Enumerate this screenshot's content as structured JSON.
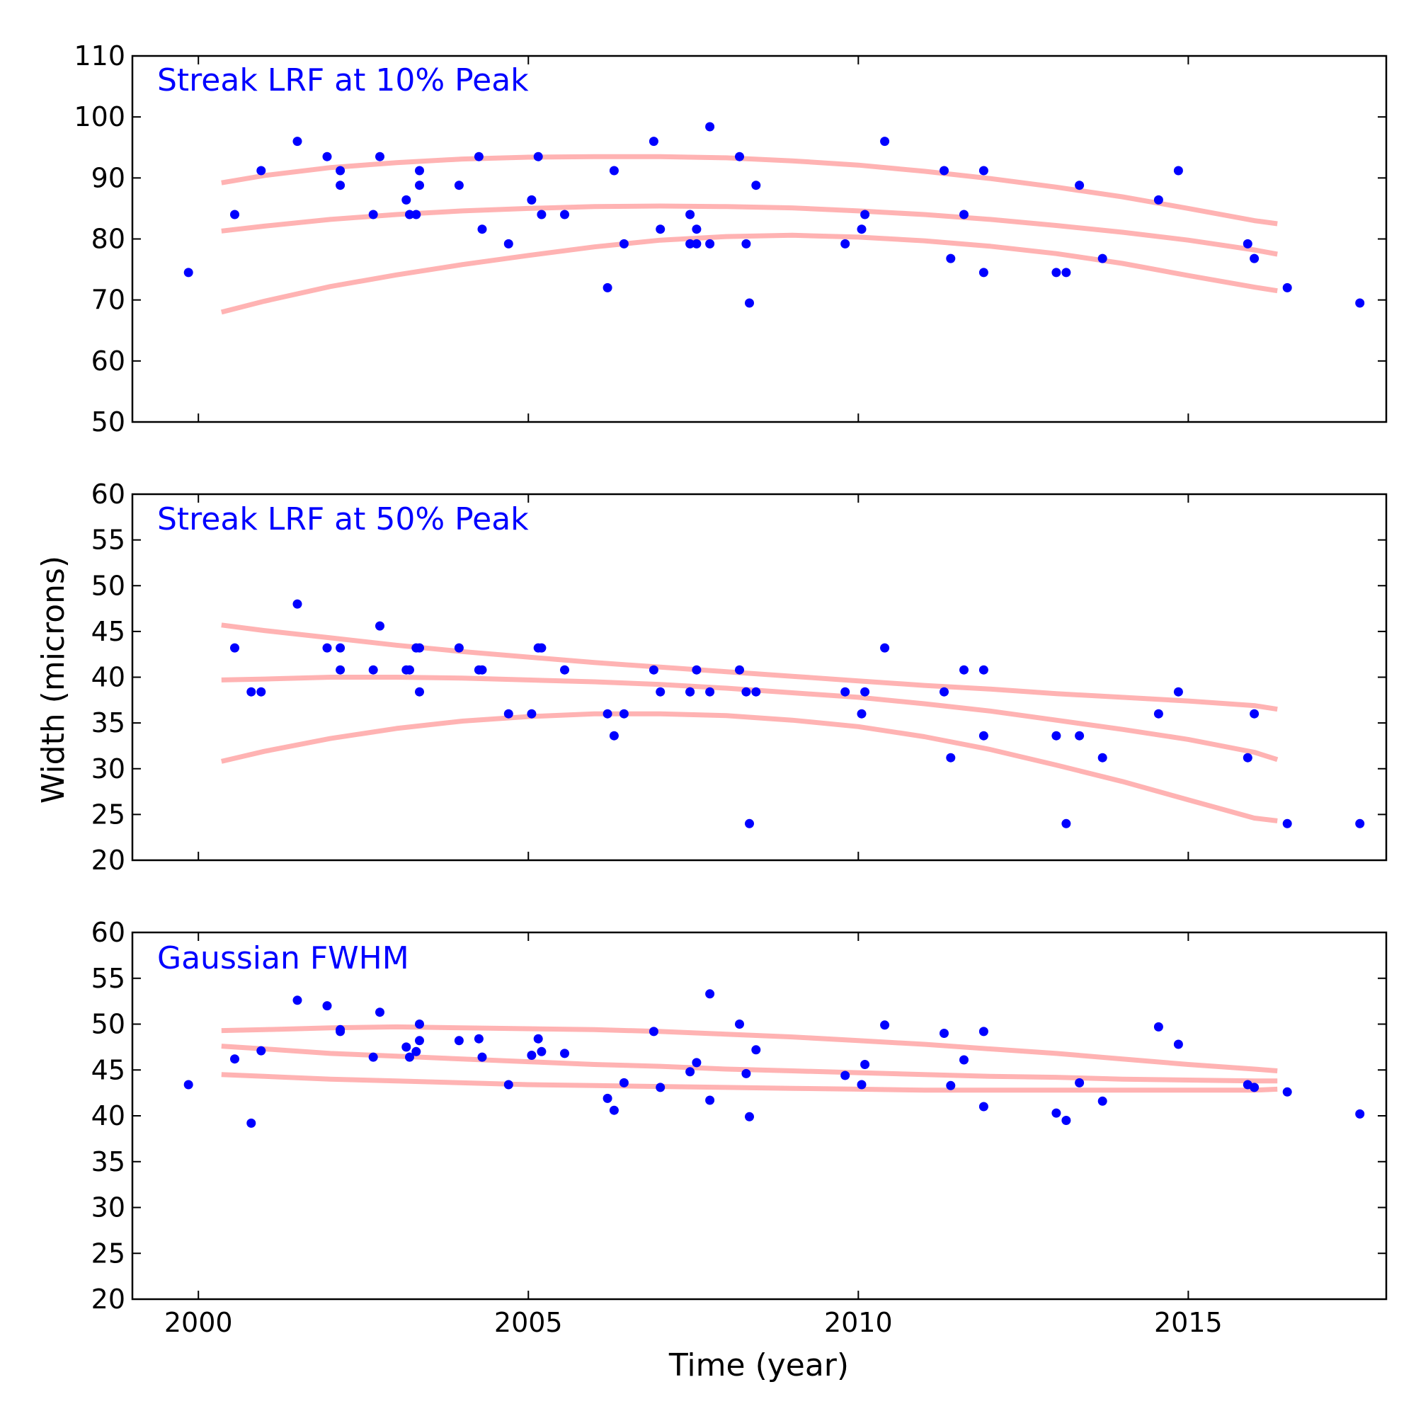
{
  "colors": {
    "points": "#0000ff",
    "fit": "#ffb3b3",
    "axes": "#000000",
    "panel_title": "#0000ff"
  },
  "chart_data": [
    {
      "type": "scatter",
      "title": "Streak LRF at 10% Peak",
      "xlabel": "",
      "ylabel": "",
      "xlim": [
        1999,
        2018
      ],
      "ylim": [
        50,
        110
      ],
      "yticks": [
        50,
        60,
        70,
        80,
        90,
        100,
        110
      ],
      "x": [
        1999.85,
        2000.55,
        2000.95,
        2001.5,
        2001.95,
        2002.15,
        2002.15,
        2002.65,
        2002.75,
        2003.15,
        2003.2,
        2003.3,
        2003.35,
        2003.35,
        2003.95,
        2004.25,
        2004.3,
        2004.7,
        2005.05,
        2005.15,
        2005.2,
        2005.55,
        2006.2,
        2006.3,
        2006.45,
        2006.9,
        2007.0,
        2007.45,
        2007.45,
        2007.55,
        2007.55,
        2007.75,
        2007.75,
        2008.2,
        2008.3,
        2008.35,
        2008.45,
        2009.8,
        2010.05,
        2010.1,
        2010.4,
        2011.3,
        2011.4,
        2011.6,
        2011.9,
        2011.9,
        2013.0,
        2013.15,
        2013.35,
        2013.7,
        2014.55,
        2014.85,
        2015.9,
        2016.0,
        2016.5,
        2017.6
      ],
      "y": [
        74.5,
        84,
        91.2,
        96,
        93.5,
        91.2,
        88.8,
        84,
        93.5,
        86.4,
        84,
        84,
        91.2,
        88.8,
        88.8,
        93.5,
        81.6,
        79.2,
        86.4,
        93.5,
        84,
        84,
        72,
        91.2,
        79.2,
        96,
        81.6,
        84,
        79.2,
        81.6,
        79.2,
        98.4,
        79.2,
        93.5,
        79.2,
        69.5,
        88.8,
        79.2,
        81.6,
        84,
        96,
        91.2,
        76.8,
        84,
        91.2,
        74.5,
        74.5,
        74.5,
        88.8,
        76.8,
        86.4,
        91.2,
        79.2,
        76.8,
        72,
        69.5
      ],
      "fit_x": [
        2000.35,
        2001,
        2002,
        2003,
        2004,
        2005,
        2006,
        2007,
        2008,
        2009,
        2010,
        2011,
        2012,
        2013,
        2014,
        2015,
        2016,
        2016.35
      ],
      "fit_upper": [
        89.2,
        90.4,
        91.7,
        92.5,
        93.1,
        93.4,
        93.5,
        93.5,
        93.3,
        92.8,
        92.1,
        91.1,
        89.9,
        88.5,
        86.9,
        85,
        83,
        82.5
      ],
      "fit_middle": [
        81.3,
        82.1,
        83.2,
        84,
        84.6,
        85,
        85.3,
        85.4,
        85.3,
        85.1,
        84.6,
        84,
        83.2,
        82.2,
        81.1,
        79.8,
        78.2,
        77.5
      ],
      "fit_lower": [
        68,
        69.8,
        72.2,
        74.1,
        75.8,
        77.3,
        78.7,
        79.8,
        80.4,
        80.6,
        80.3,
        79.7,
        78.8,
        77.6,
        76,
        74,
        72.1,
        71.5
      ]
    },
    {
      "type": "scatter",
      "title": "Streak LRF at 50% Peak",
      "xlabel": "",
      "ylabel": "Width (microns)",
      "xlim": [
        1999,
        2018
      ],
      "ylim": [
        20,
        60
      ],
      "yticks": [
        20,
        25,
        30,
        35,
        40,
        45,
        50,
        55,
        60
      ],
      "x": [
        2000.55,
        2000.8,
        2000.95,
        2001.5,
        2001.95,
        2002.15,
        2002.15,
        2002.65,
        2002.75,
        2003.15,
        2003.2,
        2003.3,
        2003.35,
        2003.35,
        2003.95,
        2004.25,
        2004.3,
        2004.7,
        2005.05,
        2005.15,
        2005.2,
        2005.55,
        2006.2,
        2006.3,
        2006.45,
        2006.9,
        2007.0,
        2007.45,
        2007.45,
        2007.55,
        2007.75,
        2008.2,
        2008.3,
        2008.35,
        2008.45,
        2009.8,
        2010.05,
        2010.1,
        2010.4,
        2011.3,
        2011.4,
        2011.6,
        2011.9,
        2011.9,
        2013.0,
        2013.15,
        2013.35,
        2013.7,
        2014.55,
        2014.85,
        2015.9,
        2016.0,
        2016.5,
        2017.6
      ],
      "y": [
        43.2,
        38.4,
        38.4,
        48,
        43.2,
        43.2,
        40.8,
        40.8,
        45.6,
        40.8,
        40.8,
        43.2,
        43.2,
        38.4,
        43.2,
        40.8,
        40.8,
        36,
        36,
        43.2,
        43.2,
        40.8,
        36,
        33.6,
        36,
        40.8,
        38.4,
        38.4,
        38.4,
        40.8,
        38.4,
        40.8,
        38.4,
        24,
        38.4,
        38.4,
        36,
        38.4,
        43.2,
        38.4,
        31.2,
        40.8,
        40.8,
        33.6,
        33.6,
        24,
        33.6,
        31.2,
        36,
        38.4,
        31.2,
        36,
        24,
        24
      ],
      "fit_x": [
        2000.35,
        2001,
        2002,
        2003,
        2004,
        2005,
        2006,
        2007,
        2008,
        2009,
        2010,
        2011,
        2012,
        2013,
        2014,
        2015,
        2016,
        2016.35
      ],
      "fit_upper": [
        45.7,
        45.1,
        44.3,
        43.5,
        42.8,
        42.2,
        41.6,
        41.1,
        40.6,
        40.1,
        39.6,
        39.1,
        38.7,
        38.2,
        37.8,
        37.4,
        36.9,
        36.5
      ],
      "fit_middle": [
        39.7,
        39.8,
        40,
        40,
        39.9,
        39.7,
        39.5,
        39.2,
        38.8,
        38.3,
        37.8,
        37.1,
        36.3,
        35.3,
        34.3,
        33.2,
        31.8,
        31
      ],
      "fit_lower": [
        30.8,
        31.9,
        33.3,
        34.4,
        35.2,
        35.7,
        36,
        36,
        35.8,
        35.3,
        34.6,
        33.5,
        32.1,
        30.4,
        28.6,
        26.6,
        24.6,
        24.3
      ]
    },
    {
      "type": "scatter",
      "title": "Gaussian FWHM",
      "xlabel": "Time (year)",
      "ylabel": "",
      "xlim": [
        1999,
        2018
      ],
      "ylim": [
        20,
        60
      ],
      "yticks": [
        20,
        25,
        30,
        35,
        40,
        45,
        50,
        55,
        60
      ],
      "xticks": [
        2000,
        2005,
        2010,
        2015
      ],
      "x": [
        1999.85,
        2000.55,
        2000.8,
        2000.95,
        2001.5,
        2001.95,
        2002.15,
        2002.15,
        2002.65,
        2002.75,
        2003.15,
        2003.2,
        2003.3,
        2003.35,
        2003.35,
        2003.95,
        2004.25,
        2004.3,
        2004.7,
        2005.05,
        2005.15,
        2005.2,
        2005.55,
        2006.2,
        2006.3,
        2006.45,
        2006.9,
        2007.0,
        2007.45,
        2007.55,
        2007.75,
        2007.75,
        2008.2,
        2008.3,
        2008.35,
        2008.45,
        2009.8,
        2010.05,
        2010.1,
        2010.4,
        2011.3,
        2011.4,
        2011.6,
        2011.9,
        2011.9,
        2013.0,
        2013.15,
        2013.35,
        2013.7,
        2014.55,
        2014.85,
        2015.9,
        2016.0,
        2016.5,
        2017.6
      ],
      "y": [
        43.4,
        46.2,
        39.2,
        47.1,
        52.6,
        52,
        49.4,
        49.2,
        46.4,
        51.3,
        47.5,
        46.4,
        47,
        48.2,
        50,
        48.2,
        48.4,
        46.4,
        43.4,
        46.6,
        48.4,
        47,
        46.8,
        41.9,
        40.6,
        43.6,
        49.2,
        43.1,
        44.8,
        45.8,
        41.7,
        53.3,
        50,
        44.6,
        39.9,
        47.2,
        44.4,
        43.4,
        45.6,
        49.9,
        49,
        43.3,
        46.1,
        49.2,
        41,
        40.3,
        39.5,
        43.6,
        41.6,
        49.7,
        47.8,
        43.4,
        43.1,
        42.6,
        40.2
      ],
      "fit_x": [
        2000.35,
        2001,
        2002,
        2003,
        2004,
        2005,
        2006,
        2007,
        2008,
        2009,
        2010,
        2011,
        2012,
        2013,
        2014,
        2015,
        2016,
        2016.35
      ],
      "fit_upper": [
        49.3,
        49.4,
        49.6,
        49.7,
        49.6,
        49.5,
        49.4,
        49.2,
        48.9,
        48.6,
        48.2,
        47.8,
        47.3,
        46.8,
        46.2,
        45.6,
        45.1,
        44.9
      ],
      "fit_middle": [
        47.6,
        47.3,
        46.8,
        46.5,
        46.2,
        45.9,
        45.6,
        45.4,
        45.1,
        44.9,
        44.7,
        44.5,
        44.3,
        44.2,
        44,
        43.9,
        43.8,
        43.8
      ],
      "fit_lower": [
        44.5,
        44.3,
        44,
        43.8,
        43.6,
        43.4,
        43.3,
        43.2,
        43.1,
        43,
        42.9,
        42.8,
        42.8,
        42.8,
        42.8,
        42.8,
        42.8,
        42.9
      ]
    }
  ]
}
